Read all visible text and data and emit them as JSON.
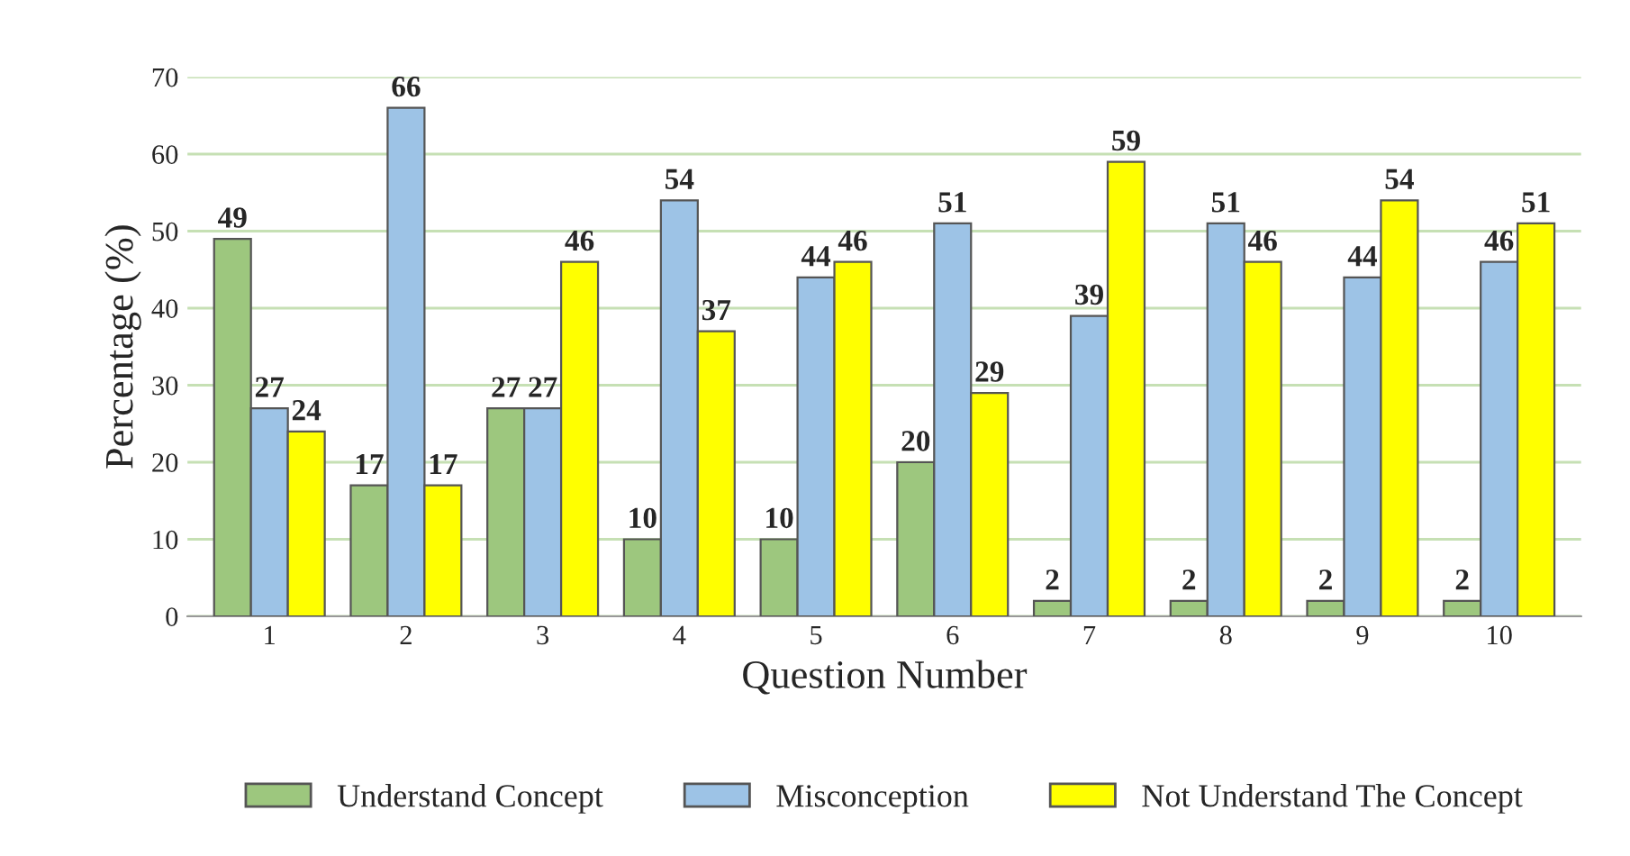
{
  "chart_data": {
    "type": "bar",
    "xlabel": "Question Number",
    "ylabel": "Percentage (%)",
    "categories": [
      "1",
      "2",
      "3",
      "4",
      "5",
      "6",
      "7",
      "8",
      "9",
      "10"
    ],
    "series": [
      {
        "name": "Understand Concept",
        "color": "#9dc77e",
        "values": [
          49,
          17,
          27,
          10,
          10,
          20,
          2,
          2,
          2,
          2
        ]
      },
      {
        "name": "Misconception",
        "color": "#9dc3e6",
        "values": [
          27,
          66,
          27,
          54,
          44,
          51,
          39,
          51,
          44,
          46
        ]
      },
      {
        "name": "Not Understand The Concept",
        "color": "#ffff00",
        "values": [
          24,
          17,
          46,
          37,
          46,
          29,
          59,
          46,
          54,
          51
        ]
      }
    ],
    "ylim": [
      0,
      70
    ],
    "yticks": [
      0,
      10,
      20,
      30,
      40,
      50,
      60,
      70
    ],
    "grid": "y",
    "legend": "bottom",
    "data_labels": true
  }
}
